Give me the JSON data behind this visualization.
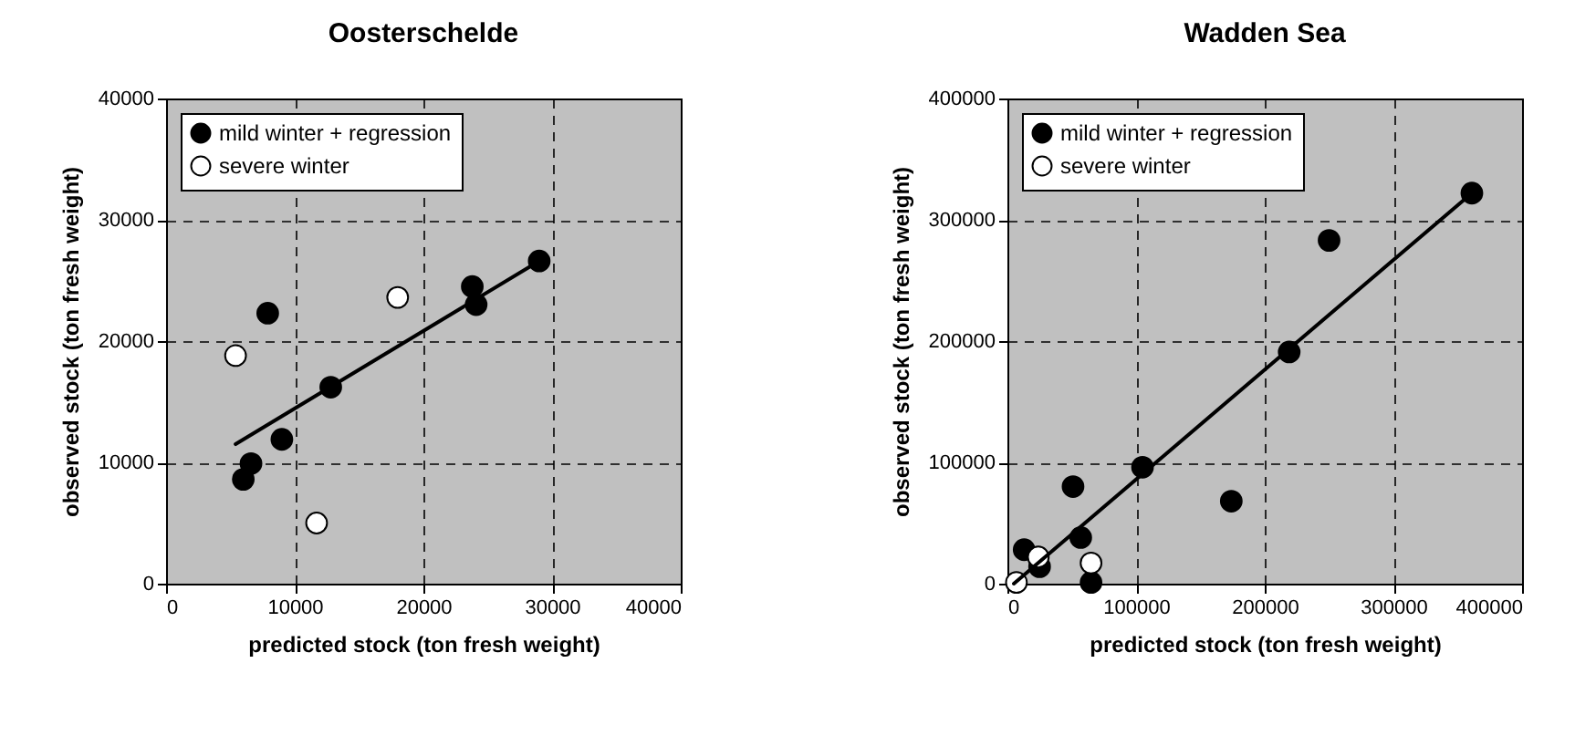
{
  "chart_data": [
    {
      "type": "scatter",
      "title": "Oosterschelde",
      "xlabel": "predicted stock (ton fresh weight)",
      "ylabel": "observed stock (ton fresh weight)",
      "xlim": [
        0,
        40000
      ],
      "ylim": [
        0,
        40000
      ],
      "xticks": [
        0,
        10000,
        20000,
        30000,
        40000
      ],
      "yticks": [
        0,
        10000,
        20000,
        30000,
        40000
      ],
      "grid": true,
      "legend": "top left",
      "marker": "circle",
      "series": [
        {
          "name": "mild winter + regression",
          "color": "#000000",
          "x": [
            7900,
            12800,
            9000,
            6600,
            6000,
            23800,
            24100,
            29000
          ],
          "values": [
            22300,
            16200,
            11900,
            9900,
            8600,
            24500,
            23000,
            26600
          ]
        },
        {
          "name": "severe winter",
          "color": "#ffffff",
          "x": [
            5400,
            18000,
            11700
          ],
          "values": [
            18800,
            23600,
            5000
          ]
        },
        {
          "type": "line",
          "color": "#000000",
          "marker": "none",
          "line_style": "solid",
          "x": [
            5400,
            29000
          ],
          "values": [
            11500,
            26600
          ]
        }
      ]
    },
    {
      "type": "scatter",
      "title": "Wadden Sea",
      "xlabel": "predicted stock (ton fresh weight)",
      "ylabel": "observed stock (ton fresh weight)",
      "xlim": [
        0,
        400000
      ],
      "ylim": [
        0,
        400000
      ],
      "xticks": [
        0,
        100000,
        200000,
        300000,
        400000
      ],
      "yticks": [
        0,
        100000,
        200000,
        300000,
        400000
      ],
      "grid": true,
      "legend": "top left",
      "marker": "circle",
      "series": [
        {
          "name": "mild winter + regression",
          "color": "#000000",
          "x": [
            361000,
            250000,
            219000,
            105000,
            174000,
            51000,
            57000,
            13000,
            25000,
            65000
          ],
          "values": [
            322000,
            283000,
            191000,
            96000,
            68000,
            80000,
            38000,
            28000,
            14000,
            1000
          ]
        },
        {
          "name": "severe winter",
          "color": "#ffffff",
          "x": [
            7000,
            24000,
            65000
          ],
          "values": [
            1000,
            22000,
            17000
          ]
        },
        {
          "type": "line",
          "color": "#000000",
          "marker": "none",
          "line_style": "solid",
          "x": [
            5000,
            361000
          ],
          "values": [
            0,
            322000
          ]
        }
      ]
    }
  ]
}
